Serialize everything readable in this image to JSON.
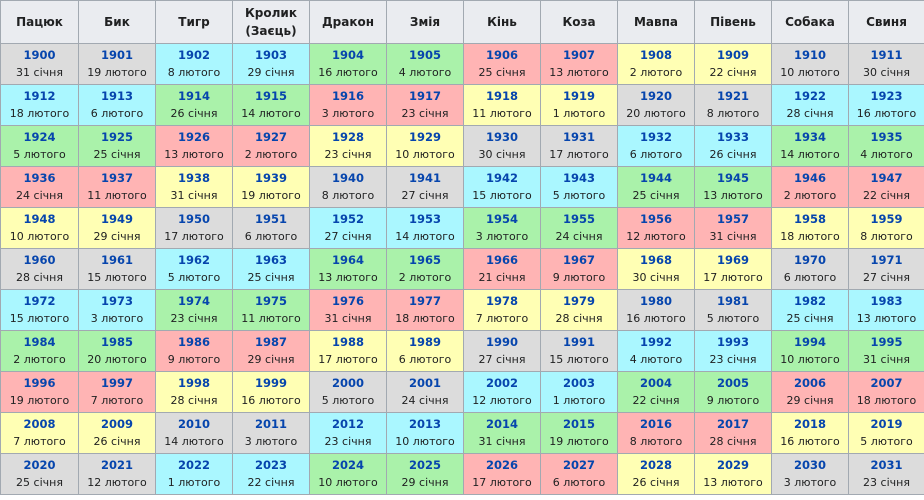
{
  "headers": [
    "Пацюк",
    "Бик",
    "Тигр",
    "Кролик (Заєць)",
    "Дракон",
    "Змія",
    "Кінь",
    "Коза",
    "Мавпа",
    "Півень",
    "Собака",
    "Свиня"
  ],
  "palette": {
    "grey": "#dcdcdc",
    "cyan": "#aaf7ff",
    "green": "#aaf2aa",
    "red": "#ffb4b4",
    "yellow": "#ffffb4"
  },
  "rows": [
    [
      [
        "1900",
        "31 січня",
        "grey"
      ],
      [
        "1901",
        "19 лютого",
        "grey"
      ],
      [
        "1902",
        "8 лютого",
        "cyan"
      ],
      [
        "1903",
        "29 січня",
        "cyan"
      ],
      [
        "1904",
        "16 лютого",
        "green"
      ],
      [
        "1905",
        "4 лютого",
        "green"
      ],
      [
        "1906",
        "25 січня",
        "red"
      ],
      [
        "1907",
        "13 лютого",
        "red"
      ],
      [
        "1908",
        "2 лютого",
        "yellow"
      ],
      [
        "1909",
        "22 січня",
        "yellow"
      ],
      [
        "1910",
        "10 лютого",
        "grey"
      ],
      [
        "1911",
        "30 січня",
        "grey"
      ]
    ],
    [
      [
        "1912",
        "18 лютого",
        "cyan"
      ],
      [
        "1913",
        "6 лютого",
        "cyan"
      ],
      [
        "1914",
        "26 січня",
        "green"
      ],
      [
        "1915",
        "14 лютого",
        "green"
      ],
      [
        "1916",
        "3 лютого",
        "red"
      ],
      [
        "1917",
        "23 січня",
        "red"
      ],
      [
        "1918",
        "11 лютого",
        "yellow"
      ],
      [
        "1919",
        "1 лютого",
        "yellow"
      ],
      [
        "1920",
        "20 лютого",
        "grey"
      ],
      [
        "1921",
        "8 лютого",
        "grey"
      ],
      [
        "1922",
        "28 січня",
        "cyan"
      ],
      [
        "1923",
        "16 лютого",
        "cyan"
      ]
    ],
    [
      [
        "1924",
        "5 лютого",
        "green"
      ],
      [
        "1925",
        "25 січня",
        "green"
      ],
      [
        "1926",
        "13 лютого",
        "red"
      ],
      [
        "1927",
        "2 лютого",
        "red"
      ],
      [
        "1928",
        "23 січня",
        "yellow"
      ],
      [
        "1929",
        "10 лютого",
        "yellow"
      ],
      [
        "1930",
        "30 січня",
        "grey"
      ],
      [
        "1931",
        "17 лютого",
        "grey"
      ],
      [
        "1932",
        "6 лютого",
        "cyan"
      ],
      [
        "1933",
        "26 січня",
        "cyan"
      ],
      [
        "1934",
        "14 лютого",
        "green"
      ],
      [
        "1935",
        "4 лютого",
        "green"
      ]
    ],
    [
      [
        "1936",
        "24 січня",
        "red"
      ],
      [
        "1937",
        "11 лютого",
        "red"
      ],
      [
        "1938",
        "31 січня",
        "yellow"
      ],
      [
        "1939",
        "19 лютого",
        "yellow"
      ],
      [
        "1940",
        "8 лютого",
        "grey"
      ],
      [
        "1941",
        "27 січня",
        "grey"
      ],
      [
        "1942",
        "15 лютого",
        "cyan"
      ],
      [
        "1943",
        "5 лютого",
        "cyan"
      ],
      [
        "1944",
        "25 січня",
        "green"
      ],
      [
        "1945",
        "13 лютого",
        "green"
      ],
      [
        "1946",
        "2 лютого",
        "red"
      ],
      [
        "1947",
        "22 січня",
        "red"
      ]
    ],
    [
      [
        "1948",
        "10 лютого",
        "yellow"
      ],
      [
        "1949",
        "29 січня",
        "yellow"
      ],
      [
        "1950",
        "17 лютого",
        "grey"
      ],
      [
        "1951",
        "6 лютого",
        "grey"
      ],
      [
        "1952",
        "27 січня",
        "cyan"
      ],
      [
        "1953",
        "14 лютого",
        "cyan"
      ],
      [
        "1954",
        "3 лютого",
        "green"
      ],
      [
        "1955",
        "24 січня",
        "green"
      ],
      [
        "1956",
        "12 лютого",
        "red"
      ],
      [
        "1957",
        "31 січня",
        "red"
      ],
      [
        "1958",
        "18 лютого",
        "yellow"
      ],
      [
        "1959",
        "8 лютого",
        "yellow"
      ]
    ],
    [
      [
        "1960",
        "28 січня",
        "grey"
      ],
      [
        "1961",
        "15 лютого",
        "grey"
      ],
      [
        "1962",
        "5 лютого",
        "cyan"
      ],
      [
        "1963",
        "25 січня",
        "cyan"
      ],
      [
        "1964",
        "13 лютого",
        "green"
      ],
      [
        "1965",
        "2 лютого",
        "green"
      ],
      [
        "1966",
        "21 січня",
        "red"
      ],
      [
        "1967",
        "9 лютого",
        "red"
      ],
      [
        "1968",
        "30 січня",
        "yellow"
      ],
      [
        "1969",
        "17 лютого",
        "yellow"
      ],
      [
        "1970",
        "6 лютого",
        "grey"
      ],
      [
        "1971",
        "27 січня",
        "grey"
      ]
    ],
    [
      [
        "1972",
        "15 лютого",
        "cyan"
      ],
      [
        "1973",
        "3 лютого",
        "cyan"
      ],
      [
        "1974",
        "23 січня",
        "green"
      ],
      [
        "1975",
        "11 лютого",
        "green"
      ],
      [
        "1976",
        "31 січня",
        "red"
      ],
      [
        "1977",
        "18 лютого",
        "red"
      ],
      [
        "1978",
        "7 лютого",
        "yellow"
      ],
      [
        "1979",
        "28 січня",
        "yellow"
      ],
      [
        "1980",
        "16 лютого",
        "grey"
      ],
      [
        "1981",
        "5 лютого",
        "grey"
      ],
      [
        "1982",
        "25 січня",
        "cyan"
      ],
      [
        "1983",
        "13 лютого",
        "cyan"
      ]
    ],
    [
      [
        "1984",
        "2 лютого",
        "green"
      ],
      [
        "1985",
        "20 лютого",
        "green"
      ],
      [
        "1986",
        "9 лютого",
        "red"
      ],
      [
        "1987",
        "29 січня",
        "red"
      ],
      [
        "1988",
        "17 лютого",
        "yellow"
      ],
      [
        "1989",
        "6 лютого",
        "yellow"
      ],
      [
        "1990",
        "27 січня",
        "grey"
      ],
      [
        "1991",
        "15 лютого",
        "grey"
      ],
      [
        "1992",
        "4 лютого",
        "cyan"
      ],
      [
        "1993",
        "23 січня",
        "cyan"
      ],
      [
        "1994",
        "10 лютого",
        "green"
      ],
      [
        "1995",
        "31 січня",
        "green"
      ]
    ],
    [
      [
        "1996",
        "19 лютого",
        "red"
      ],
      [
        "1997",
        "7 лютого",
        "red"
      ],
      [
        "1998",
        "28 січня",
        "yellow"
      ],
      [
        "1999",
        "16 лютого",
        "yellow"
      ],
      [
        "2000",
        "5 лютого",
        "grey"
      ],
      [
        "2001",
        "24 січня",
        "grey"
      ],
      [
        "2002",
        "12 лютого",
        "cyan"
      ],
      [
        "2003",
        "1 лютого",
        "cyan"
      ],
      [
        "2004",
        "22 січня",
        "green"
      ],
      [
        "2005",
        "9 лютого",
        "green"
      ],
      [
        "2006",
        "29 січня",
        "red"
      ],
      [
        "2007",
        "18 лютого",
        "red"
      ]
    ],
    [
      [
        "2008",
        "7 лютого",
        "yellow"
      ],
      [
        "2009",
        "26 січня",
        "yellow"
      ],
      [
        "2010",
        "14 лютого",
        "grey"
      ],
      [
        "2011",
        "3 лютого",
        "grey"
      ],
      [
        "2012",
        "23 січня",
        "cyan"
      ],
      [
        "2013",
        "10 лютого",
        "cyan"
      ],
      [
        "2014",
        "31 січня",
        "green"
      ],
      [
        "2015",
        "19 лютого",
        "green"
      ],
      [
        "2016",
        "8 лютого",
        "red"
      ],
      [
        "2017",
        "28 січня",
        "red"
      ],
      [
        "2018",
        "16 лютого",
        "yellow"
      ],
      [
        "2019",
        "5 лютого",
        "yellow"
      ]
    ],
    [
      [
        "2020",
        "25 січня",
        "grey"
      ],
      [
        "2021",
        "12 лютого",
        "grey"
      ],
      [
        "2022",
        "1 лютого",
        "cyan"
      ],
      [
        "2023",
        "22 січня",
        "cyan"
      ],
      [
        "2024",
        "10 лютого",
        "green"
      ],
      [
        "2025",
        "29 січня",
        "green"
      ],
      [
        "2026",
        "17 лютого",
        "red"
      ],
      [
        "2027",
        "6 лютого",
        "red"
      ],
      [
        "2028",
        "26 січня",
        "yellow"
      ],
      [
        "2029",
        "13 лютого",
        "yellow"
      ],
      [
        "2030",
        "3 лютого",
        "grey"
      ],
      [
        "2031",
        "23 січня",
        "grey"
      ]
    ]
  ]
}
